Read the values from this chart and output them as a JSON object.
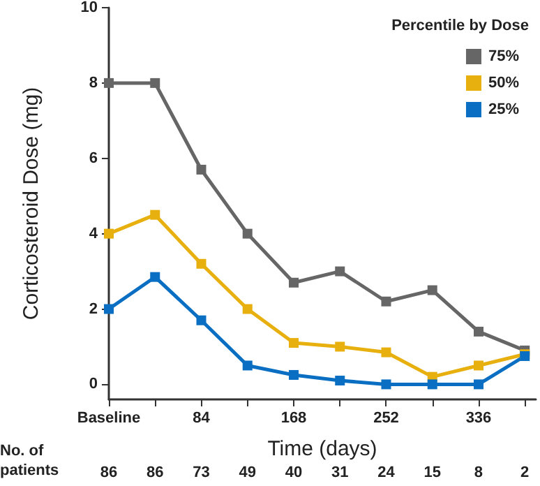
{
  "chart_data": {
    "type": "line",
    "xlabel": "Time (days)",
    "ylabel": "Corticosteroid Dose (mg)",
    "legend_title": "Percentile by Dose",
    "x": [
      0,
      42,
      84,
      126,
      168,
      210,
      252,
      294,
      336,
      378
    ],
    "series": [
      {
        "name": "75%",
        "color": "#666666",
        "values": [
          8,
          8,
          5.7,
          4.0,
          2.7,
          3.0,
          2.2,
          2.5,
          1.4,
          0.9
        ]
      },
      {
        "name": "50%",
        "color": "#e8b00f",
        "values": [
          4.0,
          4.5,
          3.2,
          2.0,
          1.1,
          1.0,
          0.85,
          0.2,
          0.5,
          0.8
        ]
      },
      {
        "name": "25%",
        "color": "#0a6fc2",
        "values": [
          2.0,
          2.85,
          1.7,
          0.5,
          0.25,
          0.1,
          0,
          0,
          0,
          0.75
        ]
      }
    ],
    "xlim": [
      0,
      388
    ],
    "xticks": [
      {
        "value": 0,
        "label": "Baseline"
      },
      {
        "value": 42,
        "label": null
      },
      84,
      {
        "value": 126,
        "label": null
      },
      168,
      {
        "value": 210,
        "label": null
      },
      252,
      {
        "value": 294,
        "label": null
      },
      336,
      {
        "value": 378,
        "label": null
      }
    ],
    "ylim": [
      -0.4,
      10
    ],
    "yticks": [
      0,
      2,
      4,
      6,
      8,
      10
    ],
    "annotations": [
      "No. of patients",
      "86",
      "86",
      "73",
      "49",
      "40",
      "31",
      "24",
      "15",
      "8",
      "2"
    ],
    "grid": false,
    "legend": "top right",
    "marker": "square",
    "line_style": "solid"
  }
}
